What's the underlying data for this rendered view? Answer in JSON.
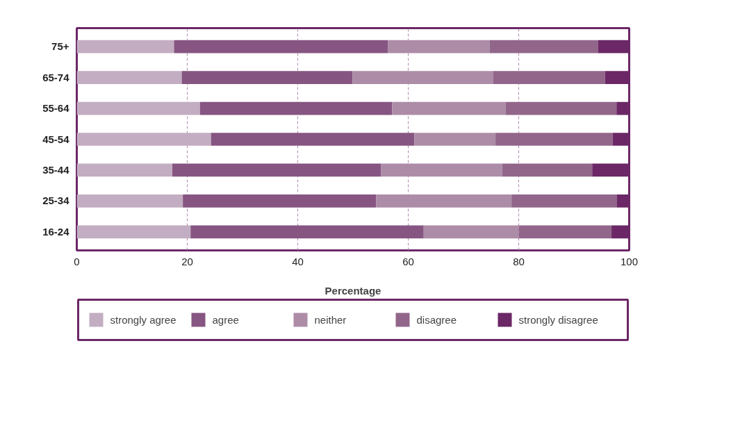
{
  "chart_data": {
    "type": "bar",
    "orientation": "horizontal",
    "stacked": true,
    "xlabel": "Percentage",
    "categories": [
      "75+",
      "65-74",
      "55-64",
      "45-54",
      "35-44",
      "25-34",
      "16-24"
    ],
    "series": [
      {
        "name": "strongly agree",
        "color": "#c3adc2",
        "values": [
          17.6,
          19.0,
          22.3,
          24.3,
          17.3,
          19.2,
          20.6
        ]
      },
      {
        "name": "agree",
        "color": "#865581",
        "values": [
          38.7,
          30.9,
          34.8,
          36.8,
          37.8,
          35.0,
          42.2
        ]
      },
      {
        "name": "neither",
        "color": "#ad8ca8",
        "values": [
          18.4,
          25.5,
          20.5,
          14.7,
          21.9,
          24.5,
          17.2
        ]
      },
      {
        "name": "disagree",
        "color": "#92668b",
        "values": [
          19.7,
          20.2,
          20.1,
          21.2,
          16.3,
          19.1,
          16.8
        ]
      },
      {
        "name": "strongly disagree",
        "color": "#6b2766",
        "values": [
          5.6,
          4.4,
          2.3,
          3.0,
          6.7,
          2.2,
          3.2
        ]
      }
    ],
    "xlim": [
      0,
      100
    ],
    "xticks": [
      0,
      20,
      40,
      60,
      80,
      100
    ],
    "grid": "x",
    "legend": "bottom"
  }
}
